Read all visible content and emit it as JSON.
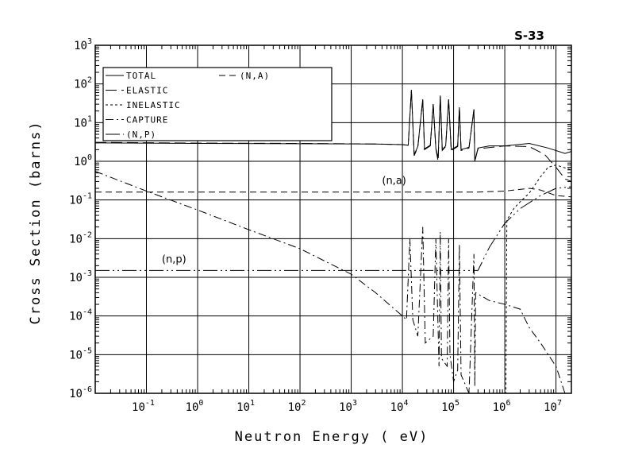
{
  "chart_data": {
    "type": "line",
    "title": "S-33",
    "xlabel": "Neutron Energy ( eV)",
    "ylabel": "Cross Section (barns)",
    "xscale": "log",
    "yscale": "log",
    "xlim": [
      0.01,
      20000000
    ],
    "ylim": [
      1e-06,
      1000
    ],
    "grid": true,
    "legend_position": "top-left",
    "x_ticks": [
      {
        "base": "10",
        "exp": "-1",
        "value": 0.1
      },
      {
        "base": "10",
        "exp": "0",
        "value": 1
      },
      {
        "base": "10",
        "exp": "1",
        "value": 10
      },
      {
        "base": "10",
        "exp": "2",
        "value": 100
      },
      {
        "base": "10",
        "exp": "3",
        "value": 1000
      },
      {
        "base": "10",
        "exp": "4",
        "value": 10000
      },
      {
        "base": "10",
        "exp": "5",
        "value": 100000
      },
      {
        "base": "10",
        "exp": "6",
        "value": 1000000
      },
      {
        "base": "10",
        "exp": "7",
        "value": 10000000
      }
    ],
    "y_ticks": [
      {
        "base": "10",
        "exp": "3",
        "value": 1000
      },
      {
        "base": "10",
        "exp": "2",
        "value": 100
      },
      {
        "base": "10",
        "exp": "1",
        "value": 10
      },
      {
        "base": "10",
        "exp": "0",
        "value": 1
      },
      {
        "base": "10",
        "exp": "-1",
        "value": 0.1
      },
      {
        "base": "10",
        "exp": "-2",
        "value": 0.01
      },
      {
        "base": "10",
        "exp": "-3",
        "value": 0.001
      },
      {
        "base": "10",
        "exp": "-4",
        "value": 0.0001
      },
      {
        "base": "10",
        "exp": "-5",
        "value": 1e-05
      },
      {
        "base": "10",
        "exp": "-6",
        "value": 1e-06
      }
    ],
    "series": [
      {
        "name": "TOTAL",
        "dash": "",
        "points": [
          [
            0.01,
            3.0
          ],
          [
            1,
            2.9
          ],
          [
            100,
            2.85
          ],
          [
            3000,
            2.8
          ],
          [
            10000,
            2.7
          ],
          [
            13000,
            2.6
          ],
          [
            15000,
            70
          ],
          [
            17000,
            1.5
          ],
          [
            20000,
            2.4
          ],
          [
            25000,
            40
          ],
          [
            27000,
            2.1
          ],
          [
            35000,
            2.6
          ],
          [
            40000,
            30
          ],
          [
            45000,
            2.2
          ],
          [
            50000,
            1.2
          ],
          [
            55000,
            50
          ],
          [
            60000,
            2.0
          ],
          [
            70000,
            2.5
          ],
          [
            80000,
            40
          ],
          [
            90000,
            2.0
          ],
          [
            120000,
            2.5
          ],
          [
            130000,
            25
          ],
          [
            140000,
            2.0
          ],
          [
            200000,
            2.3
          ],
          [
            250000,
            22
          ],
          [
            260000,
            1.0
          ],
          [
            300000,
            2.2
          ],
          [
            500000,
            2.5
          ],
          [
            1000000,
            2.5
          ],
          [
            3000000,
            2.9
          ],
          [
            7000000,
            2.2
          ],
          [
            15000000,
            1.6
          ],
          [
            20000000,
            1.8
          ]
        ]
      },
      {
        "name": "ELASTIC",
        "dash": "14,6",
        "points": [
          [
            0.01,
            3.1
          ],
          [
            1,
            2.95
          ],
          [
            100,
            2.9
          ],
          [
            3000,
            2.8
          ],
          [
            10000,
            2.7
          ],
          [
            13000,
            2.6
          ],
          [
            15000,
            70
          ],
          [
            17000,
            1.4
          ],
          [
            20000,
            2.3
          ],
          [
            25000,
            40
          ],
          [
            27000,
            2.0
          ],
          [
            35000,
            2.5
          ],
          [
            40000,
            30
          ],
          [
            45000,
            2.1
          ],
          [
            50000,
            1.0
          ],
          [
            55000,
            50
          ],
          [
            60000,
            1.9
          ],
          [
            70000,
            2.4
          ],
          [
            80000,
            40
          ],
          [
            90000,
            1.9
          ],
          [
            120000,
            2.4
          ],
          [
            130000,
            25
          ],
          [
            140000,
            1.9
          ],
          [
            200000,
            2.2
          ],
          [
            250000,
            22
          ],
          [
            260000,
            1.0
          ],
          [
            300000,
            2.1
          ],
          [
            1000000,
            2.5
          ],
          [
            3000000,
            2.4
          ],
          [
            6000000,
            1.5
          ],
          [
            10000000,
            0.7
          ],
          [
            15000000,
            0.35
          ],
          [
            20000000,
            0.3
          ]
        ]
      },
      {
        "name": "INELASTIC",
        "dash": "3,3",
        "points": [
          [
            1000000,
            1e-06
          ],
          [
            1050000,
            1e-06
          ],
          [
            1100000,
            0.03
          ],
          [
            1500000,
            0.06
          ],
          [
            2000000,
            0.09
          ],
          [
            3000000,
            0.15
          ],
          [
            5000000,
            0.4
          ],
          [
            7000000,
            0.7
          ],
          [
            10000000,
            0.8
          ],
          [
            20000000,
            0.6
          ]
        ]
      },
      {
        "name": "CAPTURE",
        "dash": "10,4,2,4",
        "points": [
          [
            0.01,
            0.55
          ],
          [
            0.1,
            0.17
          ],
          [
            1,
            0.055
          ],
          [
            10,
            0.017
          ],
          [
            100,
            0.0055
          ],
          [
            1000,
            0.0012
          ],
          [
            3000,
            0.0004
          ],
          [
            10000,
            0.0001
          ],
          [
            12000,
            8e-05
          ],
          [
            14000,
            0.01
          ],
          [
            16000,
            8e-05
          ],
          [
            20000,
            3e-05
          ],
          [
            25000,
            0.02
          ],
          [
            28000,
            2e-05
          ],
          [
            40000,
            3e-05
          ],
          [
            45000,
            0.01
          ],
          [
            52000,
            5e-06
          ],
          [
            55000,
            0.015
          ],
          [
            58000,
            8e-06
          ],
          [
            75000,
            5e-06
          ],
          [
            80000,
            0.01
          ],
          [
            85000,
            1e-05
          ],
          [
            100000,
            2e-06
          ],
          [
            120000,
            4e-06
          ],
          [
            130000,
            0.007
          ],
          [
            140000,
            3e-06
          ],
          [
            200000,
            1e-06
          ],
          [
            250000,
            0.004
          ],
          [
            260000,
            1.5e-06
          ],
          [
            270000,
            0.0004
          ],
          [
            500000,
            0.00025
          ],
          [
            1000000,
            0.0002
          ],
          [
            2000000,
            0.00015
          ],
          [
            3000000,
            5e-05
          ],
          [
            5000000,
            2e-05
          ],
          [
            10000000,
            5e-06
          ],
          [
            15000000,
            1e-06
          ]
        ]
      },
      {
        "name": "(N,P)",
        "dash": "18,4,2,4,2,4",
        "points": [
          [
            0.01,
            0.0015
          ],
          [
            1000,
            0.0015
          ],
          [
            100000,
            0.0015
          ],
          [
            300000,
            0.0015
          ],
          [
            500000,
            0.006
          ],
          [
            1000000,
            0.025
          ],
          [
            2000000,
            0.06
          ],
          [
            5000000,
            0.13
          ],
          [
            10000000,
            0.2
          ],
          [
            20000000,
            0.22
          ]
        ]
      },
      {
        "name": "(N,A)",
        "dash": "8,5",
        "points": [
          [
            0.01,
            0.16
          ],
          [
            100,
            0.16
          ],
          [
            10000,
            0.16
          ],
          [
            300000,
            0.16
          ],
          [
            1000000,
            0.17
          ],
          [
            3000000,
            0.2
          ],
          [
            5000000,
            0.18
          ],
          [
            10000000,
            0.13
          ],
          [
            20000000,
            0.12
          ]
        ]
      }
    ],
    "annotations": [
      {
        "text": "(n,a)",
        "x": 4000,
        "y": 0.26
      },
      {
        "text": "(n,p)",
        "x": 0.2,
        "y": 0.0024
      }
    ]
  }
}
